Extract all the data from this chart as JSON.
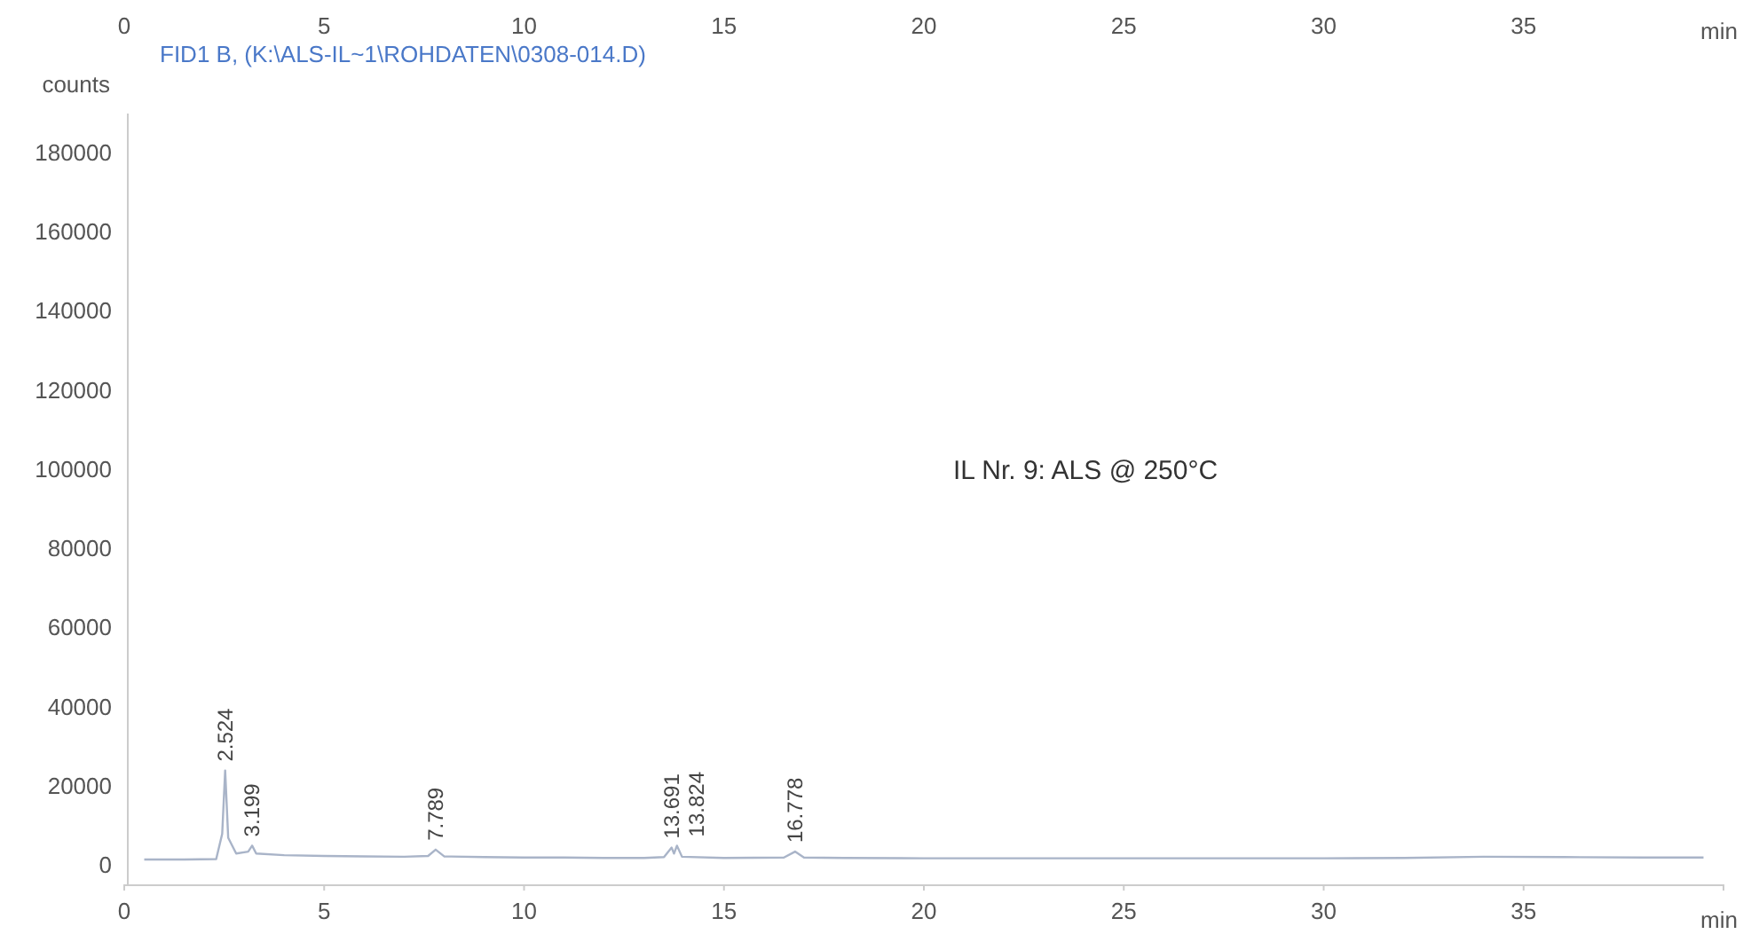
{
  "chart_data": {
    "type": "line",
    "title": "FID1 B, (K:\\ALS-IL~1\\ROHDATEN\\0308-014.D)",
    "ylabel": "counts",
    "xlabel": "min",
    "x2label": "min",
    "series": [
      {
        "color": "#a9b4c8",
        "x": [
          0.5,
          1.5,
          2.3,
          2.45,
          2.524,
          2.6,
          2.8,
          3.1,
          3.199,
          3.3,
          4,
          5,
          6,
          7,
          7.6,
          7.789,
          8,
          9,
          10,
          11,
          12,
          13,
          13.5,
          13.691,
          13.75,
          13.824,
          13.95,
          15,
          16.5,
          16.778,
          17,
          18,
          20,
          22,
          24,
          26,
          28,
          30,
          32,
          34,
          36,
          38,
          39.5
        ],
        "values": [
          1500,
          1500,
          1600,
          8000,
          24000,
          7000,
          3000,
          3500,
          5000,
          3000,
          2600,
          2400,
          2300,
          2200,
          2400,
          4000,
          2300,
          2100,
          2000,
          2000,
          1900,
          1900,
          2100,
          4500,
          3000,
          5000,
          2200,
          1900,
          2000,
          3500,
          2000,
          1900,
          1800,
          1800,
          1800,
          1800,
          1800,
          1800,
          1900,
          2200,
          2100,
          2000,
          2000
        ]
      }
    ],
    "xlim": [
      0,
      40
    ],
    "xticks": [
      0,
      5,
      10,
      15,
      20,
      25,
      30,
      35
    ],
    "x2lim": [
      0,
      40
    ],
    "x2ticks": [
      0,
      5,
      10,
      15,
      20,
      25,
      30,
      35
    ],
    "ylim": [
      -5000,
      190000
    ],
    "yticks": [
      0,
      20000,
      40000,
      60000,
      80000,
      100000,
      120000,
      140000,
      160000,
      180000
    ],
    "grid": false,
    "marker": "none",
    "line_style": "solid",
    "annotations": [
      {
        "text": "2.524",
        "x": 2.524,
        "y": 24000
      },
      {
        "text": "3.199",
        "x": 3.199,
        "y": 5000
      },
      {
        "text": "7.789",
        "x": 7.789,
        "y": 4000
      },
      {
        "text": "13.691",
        "x": 13.691,
        "y": 4500
      },
      {
        "text": "13.824",
        "x": 13.824,
        "y": 5000
      },
      {
        "text": "16.778",
        "x": 16.778,
        "y": 3500
      },
      "IL Nr. 9: ALS @ 250°C"
    ]
  }
}
